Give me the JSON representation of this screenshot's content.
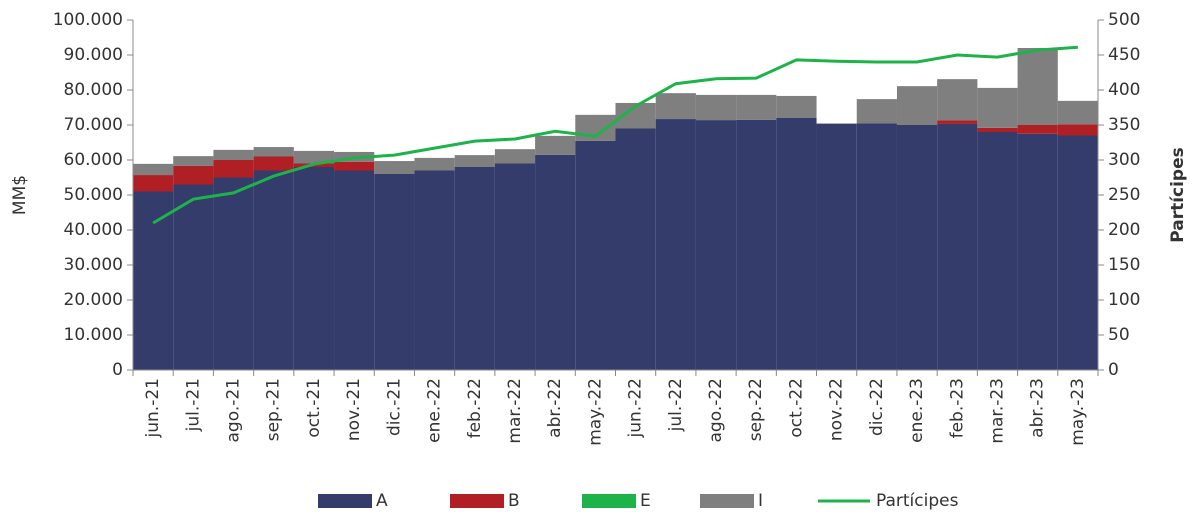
{
  "chart_data": {
    "type": "bar",
    "y_label": "MM$",
    "y2_label": "Partícipes",
    "categories": [
      "jun.-21",
      "jul.-21",
      "ago.-21",
      "sep.-21",
      "oct.-21",
      "nov.-21",
      "dic.-21",
      "ene.-22",
      "feb.-22",
      "mar.-22",
      "abr.-22",
      "may.-22",
      "jun.-22",
      "jul.-22",
      "ago.-22",
      "sep.-22",
      "oct.-22",
      "nov.-22",
      "dic.-22",
      "ene.-23",
      "feb.-23",
      "mar.-23",
      "abr.-23",
      "may.-23"
    ],
    "stacked": true,
    "series": [
      {
        "name": "A",
        "color": "#333c6b",
        "values": [
          51000,
          53000,
          55000,
          57000,
          58000,
          57000,
          56000,
          57000,
          58000,
          59000,
          61500,
          65500,
          69000,
          71700,
          71400,
          71500,
          72000,
          70400,
          70500,
          70000,
          70300,
          68000,
          67500,
          67000
        ]
      },
      {
        "name": "B",
        "color": "#b01f24",
        "values": [
          4700,
          5300,
          5000,
          4000,
          1000,
          2500,
          0,
          0,
          0,
          0,
          0,
          0,
          0,
          0,
          0,
          0,
          0,
          0,
          0,
          0,
          1000,
          1200,
          2500,
          3200
        ]
      },
      {
        "name": "E",
        "color": "#1db34a",
        "values": [
          0,
          0,
          0,
          0,
          0,
          0,
          0,
          0,
          0,
          0,
          0,
          0,
          0,
          0,
          0,
          0,
          0,
          0,
          0,
          0,
          0,
          0,
          0,
          0
        ]
      },
      {
        "name": "I",
        "color": "#7f7f7f",
        "values": [
          3200,
          2800,
          2900,
          2700,
          3600,
          2800,
          3700,
          3600,
          3400,
          4100,
          5400,
          7400,
          7300,
          7400,
          7200,
          7100,
          6300,
          0,
          6900,
          11100,
          11800,
          11400,
          22000,
          6700
        ]
      },
      {
        "name": "Partícipes",
        "color": "#1db34a",
        "type": "line",
        "axis": "y2",
        "values": [
          210,
          244,
          253,
          277,
          294,
          303,
          307,
          317,
          327,
          330,
          341,
          334,
          377,
          409,
          416,
          417,
          443,
          441,
          440,
          440,
          450,
          447,
          457,
          461
        ]
      }
    ],
    "ylim": [
      0,
      100000
    ],
    "yticks": [
      0,
      {
        "value": 10000,
        "label": "10.000"
      },
      {
        "value": 20000,
        "label": "20.000"
      },
      {
        "value": 30000,
        "label": "30.000"
      },
      {
        "value": 40000,
        "label": "40.000"
      },
      {
        "value": 50000,
        "label": "50.000"
      },
      {
        "value": 60000,
        "label": "60.000"
      },
      {
        "value": 70000,
        "label": "70.000"
      },
      {
        "value": 80000,
        "label": "80.000"
      },
      {
        "value": 90000,
        "label": "90.000"
      },
      {
        "value": 100000,
        "label": "100.000"
      }
    ],
    "y2lim": [
      0,
      500
    ],
    "y2ticks": [
      0,
      50,
      100,
      150,
      200,
      250,
      300,
      350,
      400,
      450,
      500
    ],
    "grid": false,
    "legend": "bottom"
  }
}
